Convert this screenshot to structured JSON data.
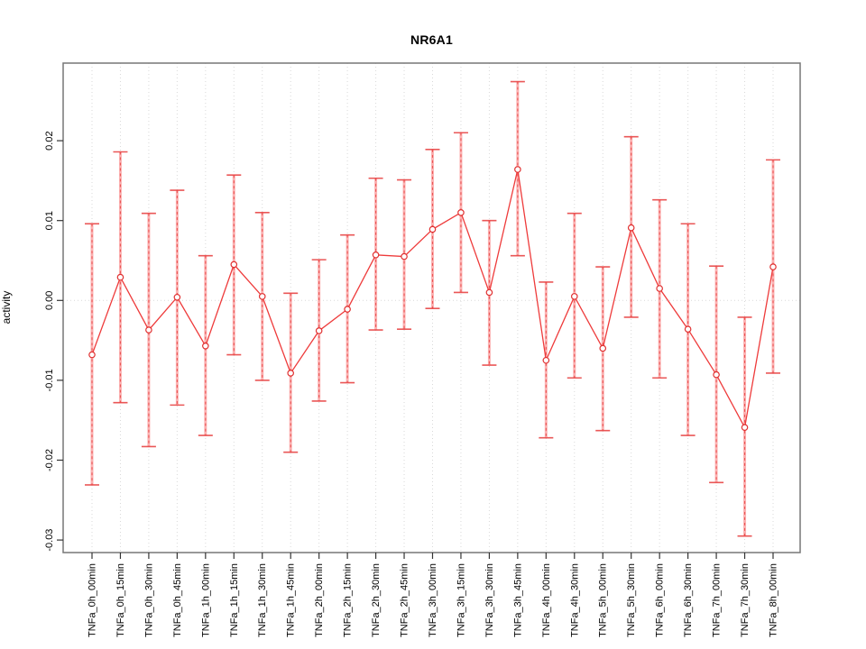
{
  "chart_data": {
    "type": "line",
    "title": "NR6A1",
    "xlabel": "",
    "ylabel": "activity",
    "legend_position": "none",
    "grid": "dotted vertical gridline at every category; dotted horizontal line at y=0",
    "point_marker": "open-circle",
    "error_bars": true,
    "ylim": [
      -0.0316,
      0.0297
    ],
    "ytick_values": [
      0.02,
      0.01,
      0.0,
      -0.01,
      -0.02,
      -0.03
    ],
    "ytick_labels": [
      "0.02",
      "0.01",
      "0.00",
      "-0.01",
      "-0.02",
      "-0.03"
    ],
    "categories": [
      "TNFa_0h_00min",
      "TNFa_0h_15min",
      "TNFa_0h_30min",
      "TNFa_0h_45min",
      "TNFa_1h_00min",
      "TNFa_1h_15min",
      "TNFa_1h_30min",
      "TNFa_1h_45min",
      "TNFa_2h_00min",
      "TNFa_2h_15min",
      "TNFa_2h_30min",
      "TNFa_2h_45min",
      "TNFa_3h_00min",
      "TNFa_3h_15min",
      "TNFa_3h_30min",
      "TNFa_3h_45min",
      "TNFa_4h_00min",
      "TNFa_4h_30min",
      "TNFa_5h_00min",
      "TNFa_5h_30min",
      "TNFa_6h_00min",
      "TNFa_6h_30min",
      "TNFa_7h_00min",
      "TNFa_7h_30min",
      "TNFa_8h_00min"
    ],
    "series": [
      {
        "name": "activity",
        "values": [
          -0.0068,
          0.0029,
          -0.0037,
          0.0004,
          -0.0057,
          0.0045,
          0.0005,
          -0.0091,
          -0.0038,
          -0.0011,
          0.0057,
          0.0055,
          0.0089,
          0.011,
          0.001,
          0.0164,
          -0.0075,
          0.0005,
          -0.006,
          0.0091,
          0.0015,
          -0.0036,
          -0.0093,
          -0.0159,
          0.0042
        ],
        "error_upper": [
          0.0096,
          0.0186,
          0.0109,
          0.0138,
          0.0056,
          0.0157,
          0.011,
          0.0009,
          0.0051,
          0.0082,
          0.0153,
          0.0151,
          0.0189,
          0.021,
          0.01,
          0.0274,
          0.0023,
          0.0109,
          0.0042,
          0.0205,
          0.0126,
          0.0096,
          0.0043,
          -0.0021,
          0.0176
        ],
        "error_lower": [
          -0.0231,
          -0.0128,
          -0.0183,
          -0.0131,
          -0.0169,
          -0.0068,
          -0.01,
          -0.019,
          -0.0126,
          -0.0103,
          -0.0037,
          -0.0036,
          -0.001,
          0.001,
          -0.0081,
          0.0056,
          -0.0172,
          -0.0097,
          -0.0163,
          -0.0021,
          -0.0097,
          -0.0169,
          -0.0228,
          -0.0295,
          -0.0091
        ]
      }
    ],
    "colors": {
      "series_line": "#ee3b3b",
      "marker_stroke": "#e03030",
      "marker_fill": "#ffffff",
      "error_bar_light": "#fb9a9a",
      "error_bar_dark": "#e84545",
      "grid": "#d9d9d9",
      "box": "#777777",
      "tick": "#333333",
      "text": "#000000",
      "background": "#ffffff"
    }
  }
}
